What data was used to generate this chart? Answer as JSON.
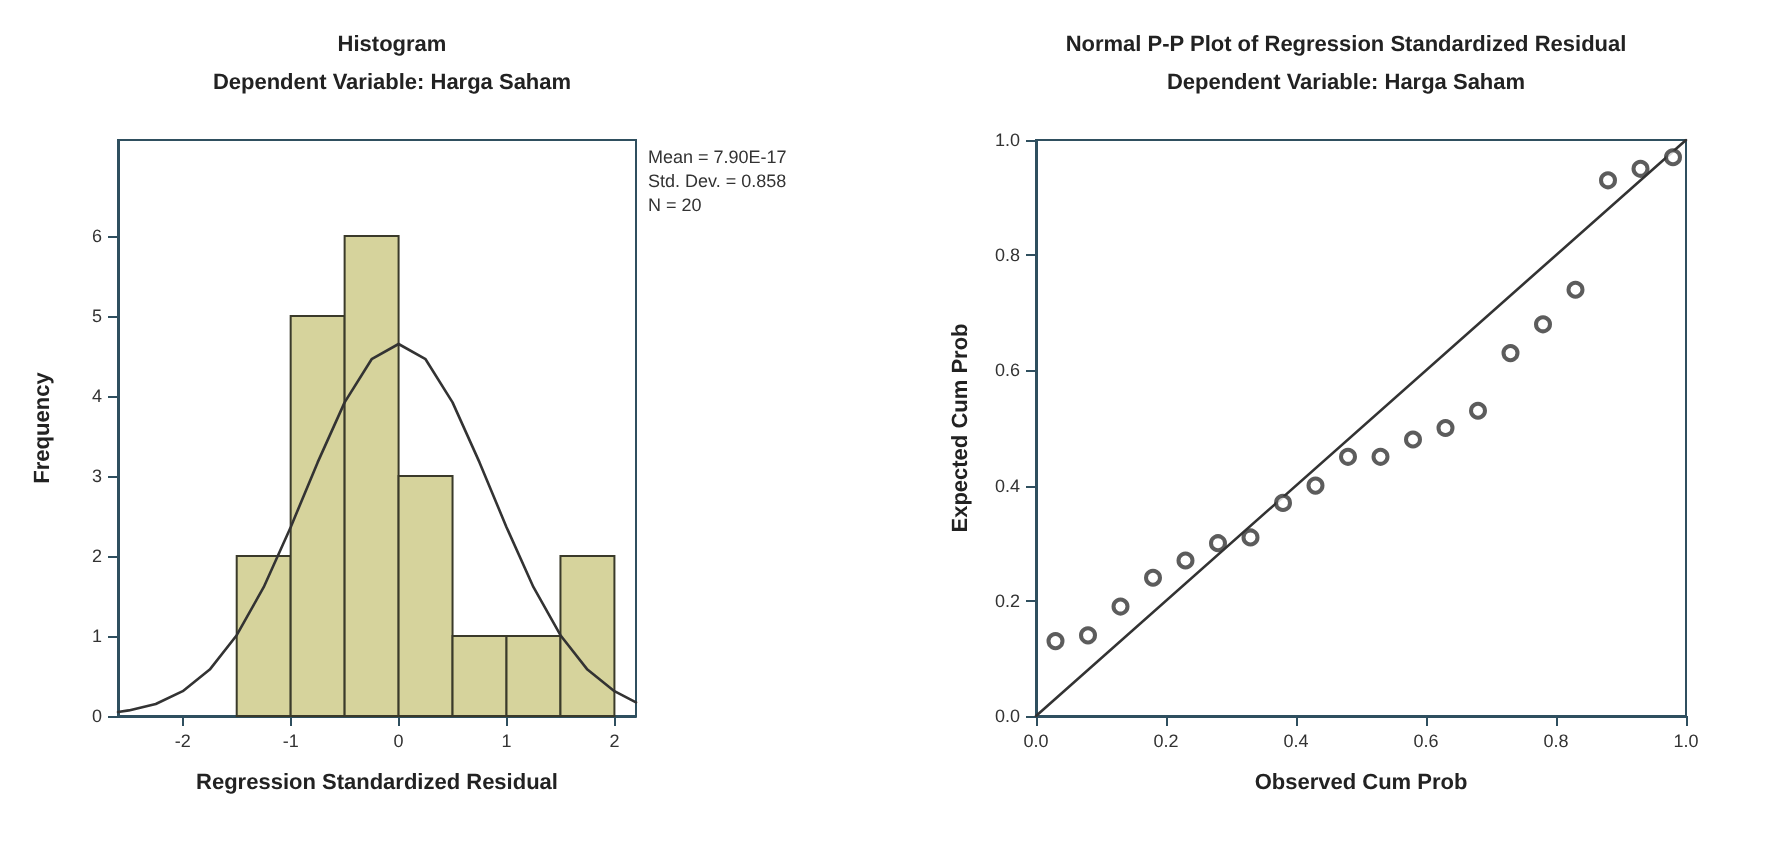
{
  "chart_data": [
    {
      "type": "histogram",
      "title": "Histogram",
      "subtitle": "Dependent Variable: Harga Saham",
      "xlabel": "Regression Standardized Residual",
      "ylabel": "Frequency",
      "bins": [
        -1.5,
        -1,
        -0.5,
        0,
        0.5,
        1,
        1.5,
        2
      ],
      "values": [
        2,
        5,
        6,
        3,
        1,
        1,
        2
      ],
      "color": "#d6d39c",
      "xlim": [
        -2.6,
        2.2
      ],
      "xticks": [
        -2,
        -1,
        0,
        1,
        2
      ],
      "ylim": [
        0,
        7.2
      ],
      "yticks": [
        0,
        1,
        2,
        3,
        4,
        5,
        6
      ],
      "annotations": [
        "Mean = 7.90E-17",
        "Std. Dev. = 0.858",
        "N = 20"
      ],
      "series": [
        {
          "type": "line",
          "color": "#333333",
          "x": [
            -2.6,
            -2.5,
            -2.25,
            -2,
            -1.75,
            -1.5,
            -1.25,
            -1,
            -0.75,
            -0.5,
            -0.25,
            0,
            0.25,
            0.5,
            0.75,
            1,
            1.25,
            1.5,
            1.75,
            2,
            2.2
          ],
          "values": [
            0.05,
            0.07,
            0.15,
            0.31,
            0.58,
            1.01,
            1.61,
            2.36,
            3.17,
            3.92,
            4.46,
            4.65,
            4.46,
            3.92,
            3.17,
            2.36,
            1.61,
            1.01,
            0.58,
            0.31,
            0.17
          ]
        }
      ]
    },
    {
      "type": "scatter",
      "title": "Normal P-P Plot of Regression Standardized Residual",
      "subtitle": "Dependent Variable: Harga Saham",
      "xlabel": "Observed Cum Prob",
      "ylabel": "Expected Cum Prob",
      "xlim": [
        0,
        1
      ],
      "ylim": [
        0,
        1
      ],
      "xticks": [
        {
          "value": 0,
          "label": "0.0"
        },
        0.2,
        0.4,
        0.6,
        0.8,
        {
          "value": 1,
          "label": "1.0"
        }
      ],
      "yticks": [
        {
          "value": 0,
          "label": "0.0"
        },
        0.2,
        0.4,
        0.6,
        0.8,
        {
          "value": 1,
          "label": "1.0"
        }
      ],
      "series": [
        {
          "marker": "circle",
          "color": "#333333",
          "x": [
            0.03,
            0.08,
            0.13,
            0.18,
            0.23,
            0.28,
            0.33,
            0.38,
            0.43,
            0.48,
            0.53,
            0.58,
            0.63,
            0.68,
            0.73,
            0.78,
            0.83,
            0.88,
            0.93,
            0.98
          ],
          "values": [
            0.13,
            0.14,
            0.19,
            0.24,
            0.27,
            0.3,
            0.31,
            0.37,
            0.4,
            0.45,
            0.45,
            0.48,
            0.5,
            0.53,
            0.63,
            0.68,
            0.74,
            0.93,
            0.95,
            0.97
          ]
        },
        {
          "type": "line",
          "marker": "none",
          "color": "#333333",
          "x": [
            0,
            1
          ],
          "values": [
            0,
            1
          ]
        }
      ]
    }
  ]
}
